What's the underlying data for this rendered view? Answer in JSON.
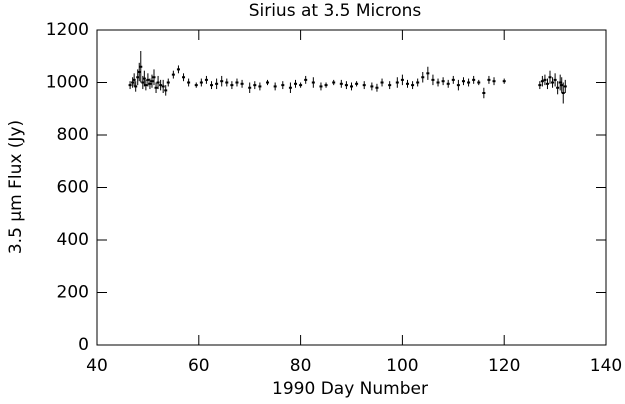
{
  "chart_data": {
    "type": "errorbar",
    "title": "Sirius at 3.5 Microns",
    "x_label": "1990 Day Number",
    "y_label": "3.5 μm Flux (Jy)",
    "xlim": [
      40,
      140
    ],
    "xticks": [
      40,
      60,
      80,
      100,
      120,
      140
    ],
    "ylim": [
      0,
      1200
    ],
    "yticks": [
      0,
      200,
      400,
      600,
      800,
      1000,
      1200
    ],
    "color": "#000000",
    "x": [
      46.5,
      47,
      47.3,
      47.6,
      48,
      48.3,
      48.6,
      49,
      49.3,
      49.6,
      50,
      50.4,
      50.8,
      51.2,
      51.6,
      52,
      52.5,
      53,
      53.5,
      54,
      55,
      56,
      57,
      58,
      59.5,
      60.5,
      61.5,
      62.5,
      63.5,
      64.5,
      65.5,
      66.5,
      67.5,
      68.5,
      70,
      71,
      72,
      73.5,
      75,
      76.5,
      78,
      79,
      80,
      81,
      82.5,
      84,
      85,
      86.5,
      88,
      89,
      90,
      91,
      92.5,
      94,
      95,
      96,
      97.5,
      99,
      100,
      101,
      102,
      103,
      104,
      105,
      106,
      107,
      108,
      109,
      110,
      111,
      112,
      113,
      114,
      115,
      116,
      117,
      118,
      120,
      127,
      127.5,
      128,
      128.5,
      129,
      129.5,
      130,
      130.5,
      131,
      131.3,
      131.6,
      132
    ],
    "values": [
      990,
      1000,
      1010,
      985,
      1020,
      1040,
      1060,
      1000,
      1015,
      990,
      1010,
      995,
      1005,
      1020,
      980,
      1000,
      990,
      985,
      970,
      1000,
      1030,
      1050,
      1020,
      1000,
      990,
      1000,
      1010,
      990,
      995,
      1005,
      1000,
      990,
      1000,
      995,
      980,
      990,
      985,
      1000,
      985,
      990,
      980,
      995,
      990,
      1010,
      1000,
      985,
      990,
      1000,
      995,
      990,
      985,
      995,
      990,
      985,
      980,
      1000,
      990,
      1000,
      1010,
      995,
      990,
      1000,
      1020,
      1035,
      1010,
      1000,
      1005,
      995,
      1010,
      990,
      1005,
      1000,
      1010,
      1000,
      960,
      1010,
      1005,
      1005,
      990,
      1005,
      1010,
      995,
      1020,
      1000,
      1010,
      980,
      1000,
      990,
      960,
      985
    ],
    "errors": [
      15,
      20,
      25,
      20,
      30,
      35,
      60,
      25,
      30,
      20,
      25,
      20,
      25,
      30,
      20,
      25,
      20,
      25,
      20,
      15,
      15,
      15,
      15,
      15,
      10,
      15,
      15,
      15,
      20,
      20,
      15,
      15,
      15,
      15,
      20,
      15,
      15,
      10,
      15,
      15,
      20,
      15,
      10,
      15,
      20,
      15,
      10,
      10,
      15,
      15,
      15,
      10,
      15,
      15,
      15,
      15,
      15,
      20,
      20,
      15,
      15,
      15,
      20,
      25,
      20,
      15,
      15,
      15,
      15,
      20,
      15,
      15,
      15,
      10,
      20,
      15,
      15,
      10,
      15,
      20,
      20,
      20,
      25,
      20,
      25,
      25,
      30,
      30,
      40,
      25
    ]
  }
}
